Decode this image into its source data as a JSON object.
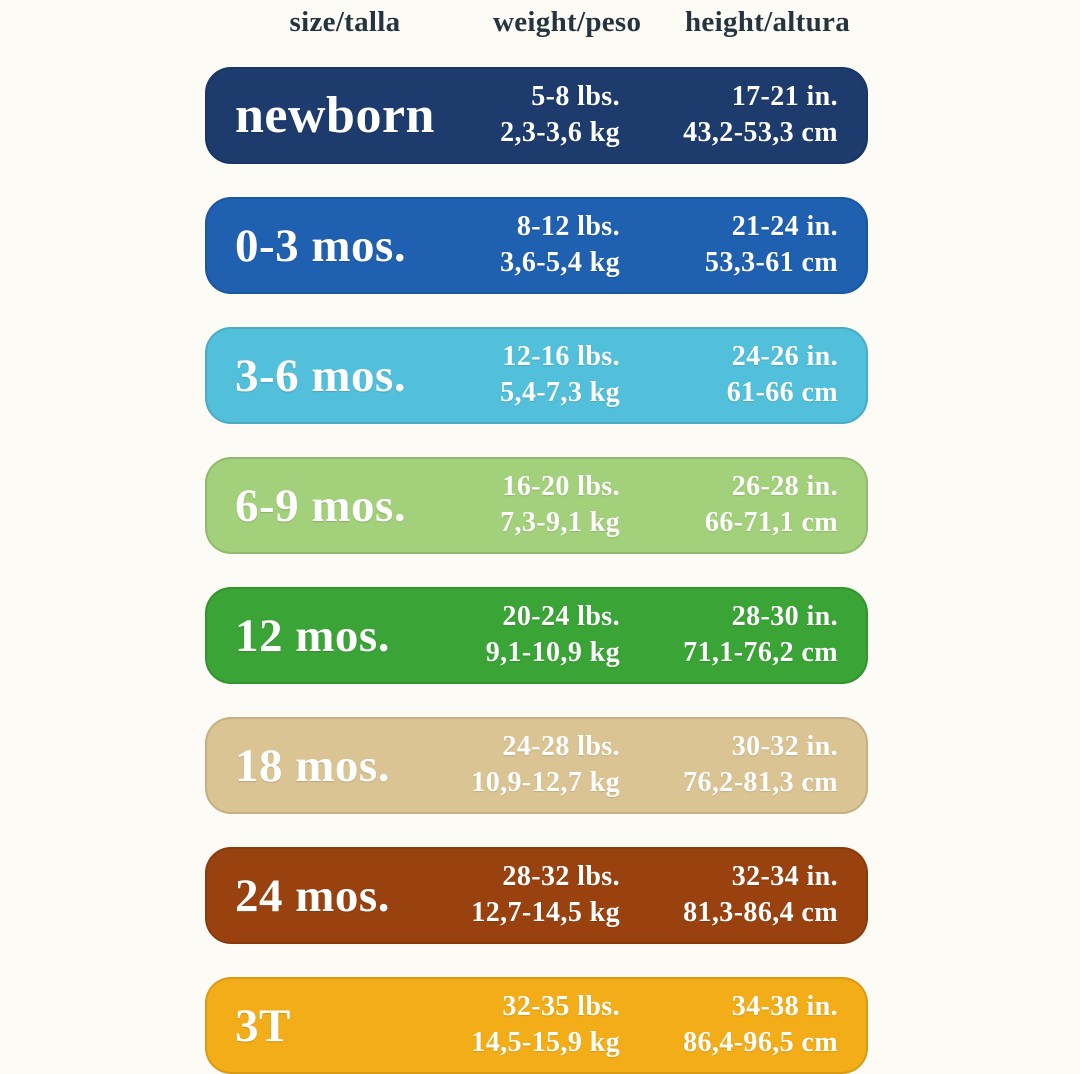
{
  "header": {
    "size_label": "size/talla",
    "weight_label": "weight/peso",
    "height_label": "height/altura",
    "text_color": "#26343f"
  },
  "rows": [
    {
      "size": "newborn",
      "weight_lbs": "5-8 lbs.",
      "weight_kg": "2,3-3,6 kg",
      "height_in": "17-21 in.",
      "height_cm": "43,2-53,3 cm",
      "color": "#1d3b6c",
      "text_color": "#ffffff"
    },
    {
      "size": "0-3 mos.",
      "weight_lbs": "8-12 lbs.",
      "weight_kg": "3,6-5,4 kg",
      "height_in": "21-24 in.",
      "height_cm": "53,3-61 cm",
      "color": "#1f60b1",
      "text_color": "#ffffff"
    },
    {
      "size": "3-6 mos.",
      "weight_lbs": "12-16 lbs.",
      "weight_kg": "5,4-7,3 kg",
      "height_in": "24-26 in.",
      "height_cm": "61-66 cm",
      "color": "#52c0db",
      "text_color": "#ffffff"
    },
    {
      "size": "6-9 mos.",
      "weight_lbs": "16-20 lbs.",
      "weight_kg": "7,3-9,1 kg",
      "height_in": "26-28 in.",
      "height_cm": "66-71,1 cm",
      "color": "#a3d07b",
      "text_color": "#ffffff"
    },
    {
      "size": "12 mos.",
      "weight_lbs": "20-24 lbs.",
      "weight_kg": "9,1-10,9 kg",
      "height_in": "28-30 in.",
      "height_cm": "71,1-76,2 cm",
      "color": "#3aa436",
      "text_color": "#ffffff"
    },
    {
      "size": "18 mos.",
      "weight_lbs": "24-28 lbs.",
      "weight_kg": "10,9-12,7 kg",
      "height_in": "30-32 in.",
      "height_cm": "76,2-81,3 cm",
      "color": "#dbc493",
      "text_color": "#ffffff"
    },
    {
      "size": "24 mos.",
      "weight_lbs": "28-32 lbs.",
      "weight_kg": "12,7-14,5 kg",
      "height_in": "32-34 in.",
      "height_cm": "81,3-86,4 cm",
      "color": "#9a420f",
      "text_color": "#ffffff"
    },
    {
      "size": "3T",
      "weight_lbs": "32-35 lbs.",
      "weight_kg": "14,5-15,9 kg",
      "height_in": "34-38 in.",
      "height_cm": "86,4-96,5 cm",
      "color": "#f2ad18",
      "text_color": "#ffffff"
    }
  ],
  "chart_data": {
    "type": "table",
    "title": "Baby clothing size chart (size / weight / height)",
    "columns": [
      "size/talla",
      "weight/peso",
      "height/altura"
    ],
    "rows": [
      [
        "newborn",
        "5-8 lbs. / 2,3-3,6 kg",
        "17-21 in. / 43,2-53,3 cm"
      ],
      [
        "0-3 mos.",
        "8-12 lbs. / 3,6-5,4 kg",
        "21-24 in. / 53,3-61 cm"
      ],
      [
        "3-6 mos.",
        "12-16 lbs. / 5,4-7,3 kg",
        "24-26 in. / 61-66 cm"
      ],
      [
        "6-9 mos.",
        "16-20 lbs. / 7,3-9,1 kg",
        "26-28 in. / 66-71,1 cm"
      ],
      [
        "12 mos.",
        "20-24 lbs. / 9,1-10,9 kg",
        "28-30 in. / 71,1-76,2 cm"
      ],
      [
        "18 mos.",
        "24-28 lbs. / 10,9-12,7 kg",
        "30-32 in. / 76,2-81,3 cm"
      ],
      [
        "24 mos.",
        "28-32 lbs. / 12,7-14,5 kg",
        "32-34 in. / 81,3-86,4 cm"
      ],
      [
        "3T",
        "32-35 lbs. / 14,5-15,9 kg",
        "34-38 in. / 86,4-96,5 cm"
      ]
    ],
    "row_colors": [
      "#1d3b6c",
      "#1f60b1",
      "#52c0db",
      "#a3d07b",
      "#3aa436",
      "#dbc493",
      "#9a420f",
      "#f2ad18"
    ],
    "background": "#fcfbf6",
    "grid": false,
    "legend": "none"
  }
}
